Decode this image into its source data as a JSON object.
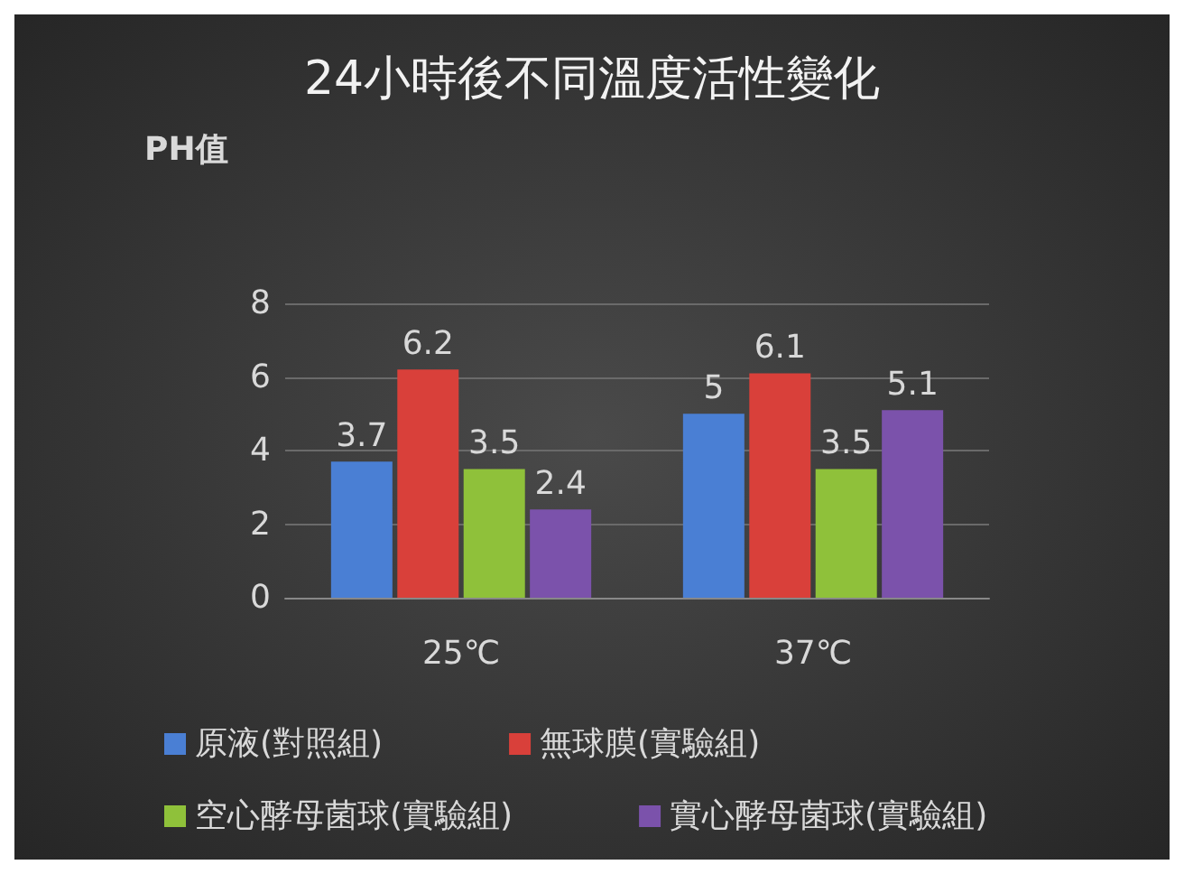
{
  "chart_data": {
    "type": "bar",
    "title": "24小時後不同溫度活性變化",
    "ylabel": "PH值",
    "categories": [
      "25℃",
      "37℃"
    ],
    "series": [
      {
        "name": "原液(對照組)",
        "color": "#4a7fd4",
        "values": [
          3.7,
          5
        ]
      },
      {
        "name": "無球膜(實驗組)",
        "color": "#d9403a",
        "values": [
          6.2,
          6.1
        ]
      },
      {
        "name": "空心酵母菌球(實驗組)",
        "color": "#8fc13a",
        "values": [
          3.5,
          3.5
        ]
      },
      {
        "name": "實心酵母菌球(實驗組)",
        "color": "#7b52ab",
        "values": [
          2.4,
          5.1
        ]
      }
    ],
    "ylim": [
      0,
      8
    ],
    "yticks": [
      0,
      2,
      4,
      6,
      8
    ],
    "grid": "y",
    "legend": "bottom",
    "data_labels": true
  }
}
